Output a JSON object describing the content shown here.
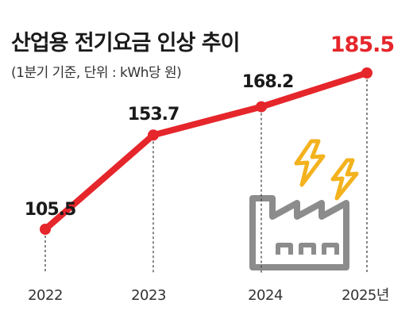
{
  "header": {
    "title": "산업용 전기요금 인상 추이",
    "subtitle": "(1분기 기준, 단위 : kWh당 원)"
  },
  "colors": {
    "line": "#e5262b",
    "highlight_value": "#e5262b",
    "text": "#1a1a1a",
    "dash": "#444444",
    "factory_icon": "#8c8c8c",
    "lightning_icon": "#f3b21e"
  },
  "decorations": {
    "icon": "factory-with-lightning-icon"
  },
  "chart_data": {
    "type": "line",
    "title": "산업용 전기요금 인상 추이",
    "subtitle": "(1분기 기준, 단위 : kWh당 원)",
    "categories": [
      "2022",
      "2023",
      "2024",
      "2025년"
    ],
    "values": [
      105.5,
      153.7,
      168.2,
      185.5
    ],
    "data_labels": [
      "105.5",
      "153.7",
      "168.2",
      "185.5"
    ],
    "highlight_index": 3,
    "ylim": [
      90,
      200
    ],
    "grid": false,
    "legend": "none"
  }
}
